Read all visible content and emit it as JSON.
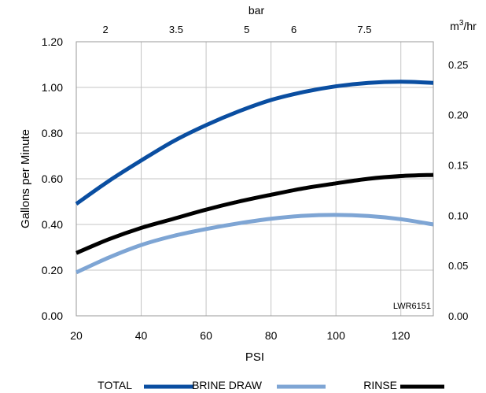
{
  "chart_data": {
    "type": "line",
    "xlabel": "PSI",
    "ylabel": "Gallons per  Minute",
    "x_secondary_label": "bar",
    "y_secondary_label": "m³/hr",
    "y_secondary_label_base": "m",
    "y_secondary_label_sup": "3",
    "y_secondary_label_rest": "/hr",
    "xlim": [
      20,
      130
    ],
    "ylim": [
      0,
      1.2
    ],
    "x_ticks": [
      20,
      40,
      60,
      80,
      100,
      120
    ],
    "x_tick_labels": [
      "20",
      "40",
      "60",
      "80",
      "100",
      "120"
    ],
    "y_ticks": [
      0,
      0.2,
      0.4,
      0.6,
      0.8,
      1.0,
      1.2
    ],
    "y_tick_labels": [
      "0.00",
      "0.20",
      "0.40",
      "0.60",
      "0.80",
      "1.00",
      "1.20"
    ],
    "top_ticks": [
      {
        "bar": 2,
        "label": "2"
      },
      {
        "bar": 3.5,
        "label": "3.5"
      },
      {
        "bar": 5,
        "label": "5"
      },
      {
        "bar": 6,
        "label": "6"
      },
      {
        "bar": 7.5,
        "label": "7.5"
      }
    ],
    "right_ticks": [
      {
        "value": 0.0,
        "label": "0.00"
      },
      {
        "value": 0.05,
        "label": "0.05"
      },
      {
        "value": 0.1,
        "label": "0.10"
      },
      {
        "value": 0.15,
        "label": "0.15"
      },
      {
        "value": 0.2,
        "label": "0.20"
      },
      {
        "value": 0.25,
        "label": "0.25"
      }
    ],
    "psi_per_bar": 14.5038,
    "gpm_per_m3hr": 4.4029,
    "grid": true,
    "legend_position": "bottom",
    "annotation": "LWR6151",
    "series": [
      {
        "name": "TOTAL",
        "color": "#0a4ea1",
        "x": [
          20,
          30,
          40,
          50,
          60,
          70,
          80,
          90,
          100,
          110,
          120,
          130
        ],
        "y": [
          0.49,
          0.59,
          0.68,
          0.765,
          0.835,
          0.895,
          0.945,
          0.98,
          1.005,
          1.02,
          1.025,
          1.02
        ]
      },
      {
        "name": "BRINE DRAW",
        "color": "#7ea5d4",
        "x": [
          20,
          30,
          40,
          50,
          60,
          70,
          80,
          90,
          100,
          110,
          120,
          130
        ],
        "y": [
          0.19,
          0.255,
          0.31,
          0.35,
          0.38,
          0.405,
          0.425,
          0.438,
          0.442,
          0.437,
          0.423,
          0.4
        ]
      },
      {
        "name": "RINSE",
        "color": "#000000",
        "x": [
          20,
          30,
          40,
          50,
          60,
          70,
          80,
          90,
          100,
          110,
          120,
          130
        ],
        "y": [
          0.275,
          0.335,
          0.385,
          0.425,
          0.465,
          0.5,
          0.53,
          0.558,
          0.58,
          0.6,
          0.612,
          0.617
        ]
      }
    ]
  }
}
